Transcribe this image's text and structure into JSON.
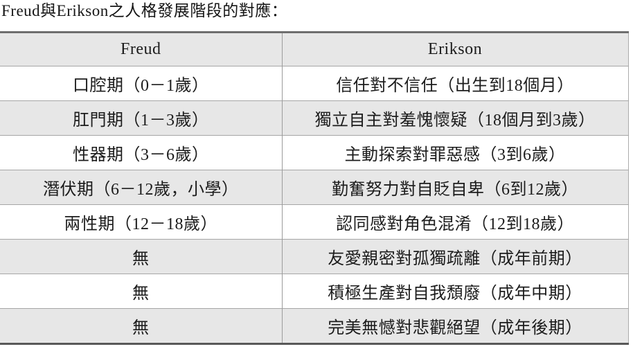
{
  "title": "Freud與Erikson之人格發展階段的對應：",
  "table": {
    "columns": [
      "Freud",
      "Erikson"
    ],
    "rows": [
      {
        "freud": "口腔期（0－1歲）",
        "erikson": "信任對不信任（出生到18個月）"
      },
      {
        "freud": "肛門期（1－3歲）",
        "erikson": "獨立自主對羞愧懷疑（18個月到3歲）"
      },
      {
        "freud": "性器期（3－6歲）",
        "erikson": "主動探索對罪惡感（3到6歲）"
      },
      {
        "freud": "潛伏期（6－12歲，小學）",
        "erikson": "勤奮努力對自貶自卑（6到12歲）"
      },
      {
        "freud": "兩性期（12－18歲）",
        "erikson": "認同感對角色混淆（12到18歲）"
      },
      {
        "freud": "無",
        "erikson": "友愛親密對孤獨疏離（成年前期）"
      },
      {
        "freud": "無",
        "erikson": "積極生產對自我頹廢（成年中期）"
      },
      {
        "freud": "無",
        "erikson": "完美無憾對悲觀絕望（成年後期）"
      }
    ]
  },
  "colors": {
    "row_shade": "#e7e7e7",
    "row_plain": "#ffffff",
    "text": "#1c1c1c",
    "rule_heavy_top": "#6e6e6e",
    "rule_heavy_bottom": "#585858",
    "rule_light": "#a6a6a6",
    "background": "#ffffff"
  }
}
